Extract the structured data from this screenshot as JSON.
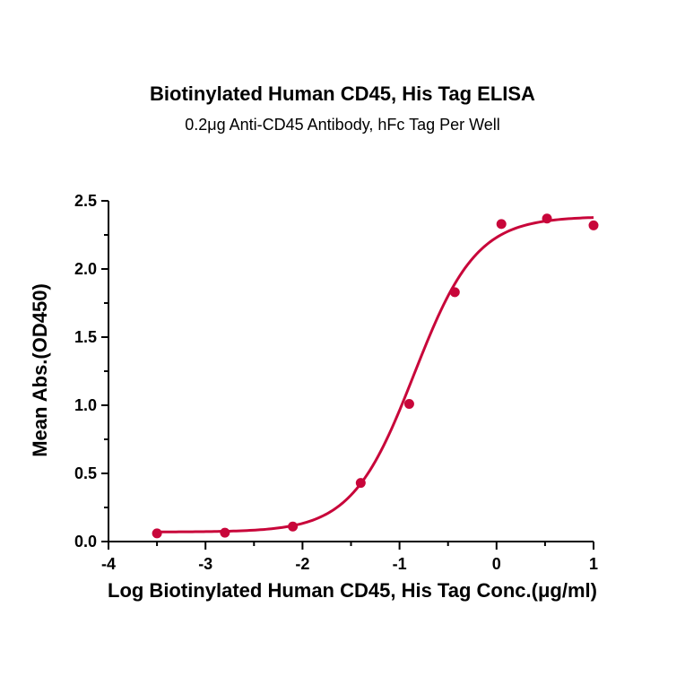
{
  "chart_data": {
    "type": "scatter",
    "title": "Biotinylated Human CD45, His Tag ELISA",
    "subtitle": "0.2μg Anti-CD45 Antibody, hFc Tag Per Well",
    "xlabel": "Log Biotinylated Human CD45, His Tag Conc.(μg/ml)",
    "ylabel": "Mean Abs.(OD450)",
    "xlim": [
      -4,
      1
    ],
    "ylim": [
      0,
      2.5
    ],
    "x_ticks": [
      "-4",
      "-3",
      "-2",
      "-1",
      "0",
      "1"
    ],
    "y_ticks": [
      "0.0",
      "0.5",
      "1.0",
      "1.5",
      "2.0",
      "2.5"
    ],
    "grid": false,
    "series": [
      {
        "x": [
          -3.5,
          -2.8,
          -2.1,
          -1.4,
          -0.9,
          -0.43,
          0.05,
          0.52,
          1.0
        ],
        "y": [
          0.06,
          0.065,
          0.11,
          0.43,
          1.01,
          1.83,
          2.33,
          2.37,
          2.32
        ]
      }
    ],
    "fit": {
      "type": "4PL",
      "bottom": 0.07,
      "top": 2.385,
      "log_ec50": -0.85,
      "hill_slope": 1.35
    },
    "color": "#c8063a"
  }
}
